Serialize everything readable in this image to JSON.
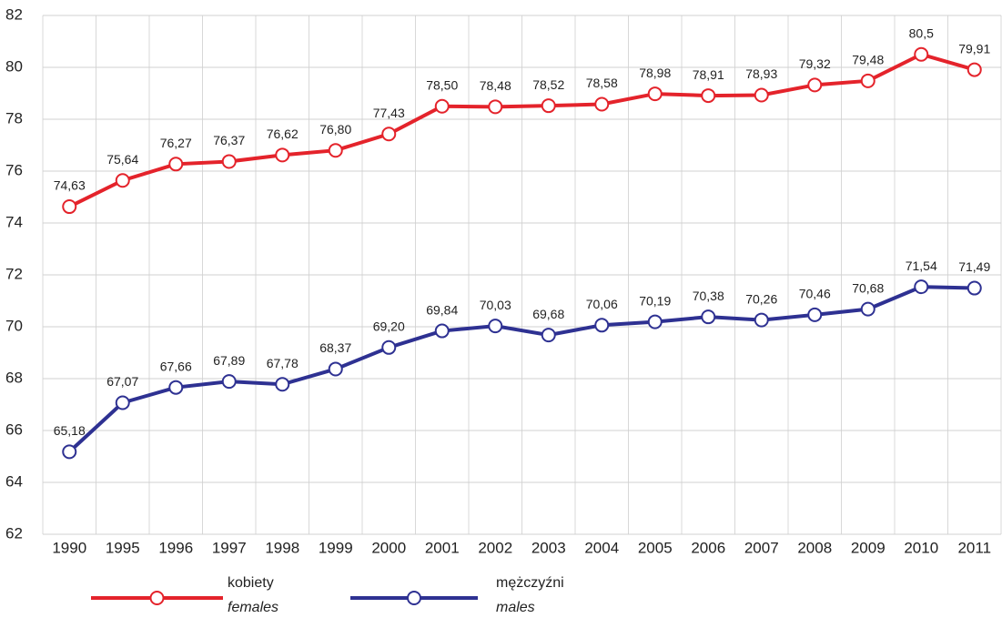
{
  "chart_data": {
    "type": "line",
    "categories": [
      "1990",
      "1995",
      "1996",
      "1997",
      "1998",
      "1999",
      "2000",
      "2001",
      "2002",
      "2003",
      "2004",
      "2005",
      "2006",
      "2007",
      "2008",
      "2009",
      "2010",
      "2011"
    ],
    "series": [
      {
        "name": "kobiety",
        "name_en": "females",
        "color": "#e4232b",
        "values": [
          74.63,
          75.64,
          76.27,
          76.37,
          76.62,
          76.8,
          77.43,
          78.5,
          78.48,
          78.52,
          78.58,
          78.98,
          78.91,
          78.93,
          79.32,
          79.48,
          80.5,
          79.91
        ],
        "value_labels": [
          "74,63",
          "75,64",
          "76,27",
          "76,37",
          "76,62",
          "76,80",
          "77,43",
          "78,50",
          "78,48",
          "78,52",
          "78,58",
          "78,98",
          "78,91",
          "78,93",
          "79,32",
          "79,48",
          "80,5",
          "79,91"
        ]
      },
      {
        "name": "mężczyźni",
        "name_en": "males",
        "color": "#2e3192",
        "values": [
          65.18,
          67.07,
          67.66,
          67.89,
          67.78,
          68.37,
          69.2,
          69.84,
          70.03,
          69.68,
          70.06,
          70.19,
          70.38,
          70.26,
          70.46,
          70.68,
          71.54,
          71.49
        ],
        "value_labels": [
          "65,18",
          "67,07",
          "67,66",
          "67,89",
          "67,78",
          "68,37",
          "69,20",
          "69,84",
          "70,03",
          "69,68",
          "70,06",
          "70,19",
          "70,38",
          "70,26",
          "70,46",
          "70,68",
          "71,54",
          "71,49"
        ]
      }
    ],
    "ylim": [
      62,
      82
    ],
    "yticks": [
      62,
      64,
      66,
      68,
      70,
      72,
      74,
      76,
      78,
      80,
      82
    ],
    "grid": true
  }
}
